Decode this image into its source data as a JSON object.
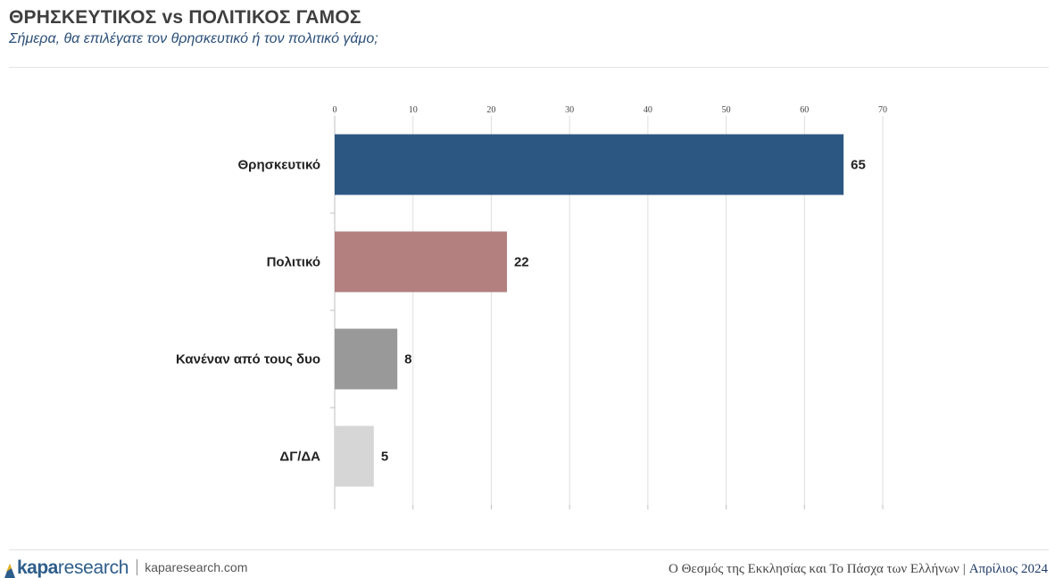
{
  "header": {
    "title": "ΘΡΗΣΚΕΥΤΙΚΟΣ vs ΠΟΛΙΤΙΚΟΣ ΓΑΜΟΣ",
    "subtitle": "Σήμερα, θα επιλέγατε τον θρησκευτικό ή τον πολιτικό γάμο;"
  },
  "chart_data": {
    "type": "bar",
    "orientation": "horizontal",
    "categories": [
      "Θρησκευτικό",
      "Πολιτικό",
      "Κανέναν από τους δυο",
      "ΔΓ/ΔΑ"
    ],
    "values": [
      65,
      22,
      8,
      5
    ],
    "colors": [
      "#2c5782",
      "#b37f7f",
      "#999999",
      "#d6d6d6"
    ],
    "xlim": [
      0,
      70
    ],
    "xticks": [
      0,
      10,
      20,
      30,
      40,
      50,
      60,
      70
    ],
    "grid": true,
    "axis_position": "top"
  },
  "footer": {
    "logo_kapa": "kapa",
    "logo_research": "research",
    "url": "kaparesearch.com",
    "study": "Ο Θεσμός της Εκκλησίας και Το Πάσχα των Ελλήνων",
    "separator": "|",
    "date": "Απρίλιος 2024"
  }
}
